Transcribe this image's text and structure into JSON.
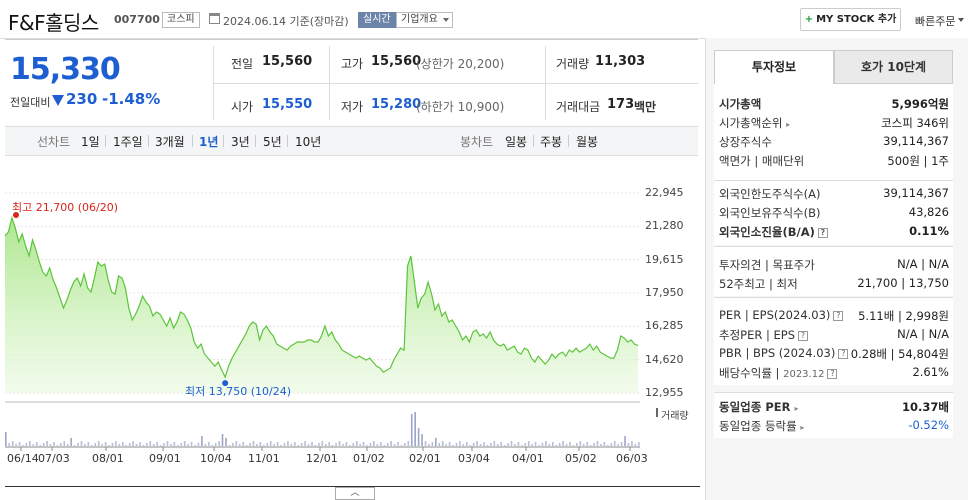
{
  "header": {
    "title": "F&F홀딩스",
    "code": "007700",
    "market_badge": "코스피",
    "date": "2024.06.14 기준(장마감)",
    "live_badge": "실시간",
    "company_info": "기업개요",
    "mystock_label": "MY STOCK 추가",
    "quick_order": "빠른주문"
  },
  "quote": {
    "price": "15,330",
    "change_label": "전일대비",
    "change_value": "230",
    "change_pct": "-1.48%",
    "prev_close_label": "전일",
    "prev_close": "15,560",
    "high_label": "고가",
    "high": "15,560",
    "upper_limit": "(상한가 20,200)",
    "volume_label": "거래량",
    "volume": "11,303",
    "open_label": "시가",
    "open": "15,550",
    "low_label": "저가",
    "low": "15,280",
    "lower_limit": "(하한가 10,900)",
    "amount_label": "거래대금",
    "amount": "173",
    "amount_unit": "백만"
  },
  "periods": {
    "line_label": "선차트",
    "items": [
      "1일",
      "1주일",
      "3개월",
      "1년",
      "3년",
      "5년",
      "10년"
    ],
    "selected": "1년",
    "candle_label": "봉차트",
    "candle_items": [
      "일봉",
      "주봉",
      "월봉"
    ]
  },
  "chart_data": {
    "type": "area",
    "title": "",
    "y_ticks": [
      "22,945",
      "21,280",
      "19,615",
      "17,950",
      "16,285",
      "14,620",
      "12,955"
    ],
    "ylim": [
      12955,
      22945
    ],
    "x_ticks": [
      "06/14",
      "07/03",
      "08/01",
      "09/01",
      "10/04",
      "11/01",
      "12/01",
      "01/02",
      "02/01",
      "03/04",
      "04/01",
      "05/02",
      "06/03"
    ],
    "high_annotation": "최고 21,700 (06/20)",
    "low_annotation": "최저 13,750 (10/24)",
    "volume_label": "거래량",
    "series": [
      {
        "values": [
          20800,
          21000,
          21700,
          21200,
          20500,
          20900,
          20300,
          19800,
          20600,
          20100,
          19500,
          19000,
          18800,
          19200,
          18600,
          18200,
          17700,
          17200,
          17600,
          18100,
          18500,
          18700,
          18300,
          18900,
          18200,
          18000,
          18700,
          19500,
          19300,
          19400,
          18600,
          18000,
          17900,
          18800,
          18700,
          18200,
          17200,
          16600,
          16900,
          17300,
          17800,
          17500,
          17300,
          16800,
          17000,
          16900,
          16600,
          16300,
          16700,
          16200,
          16500,
          17000,
          16900,
          16600,
          16200,
          15500,
          15200,
          15400,
          14900,
          14700,
          14500,
          14300,
          14500,
          14100,
          13750,
          14300,
          14700,
          15000,
          15300,
          15600,
          15900,
          16300,
          16500,
          16400,
          15600,
          16100,
          16300,
          16000,
          15800,
          15400,
          15300,
          15200,
          15100,
          15300,
          15400,
          15500,
          15500,
          15500,
          15600,
          15600,
          15500,
          15500,
          15800,
          16300,
          15800,
          16000,
          15600,
          15400,
          15100,
          15000,
          14900,
          14800,
          14700,
          14800,
          14700,
          14600,
          14700,
          14500,
          14300,
          14200,
          14000,
          14100,
          14200,
          14600,
          14900,
          15200,
          15100,
          19300,
          19800,
          18500,
          17200,
          17700,
          17900,
          18500,
          17900,
          17100,
          17400,
          16800,
          17000,
          16500,
          16600,
          16300,
          16000,
          15600,
          15800,
          15500,
          16000,
          16100,
          15800,
          15900,
          15700,
          16000,
          15600,
          15400,
          15300,
          15400,
          15100,
          15200,
          15300,
          15000,
          14900,
          15200,
          15100,
          14700,
          14500,
          14800,
          14600,
          14400,
          14600,
          14900,
          14700,
          14900,
          15000,
          14800,
          15100,
          15000,
          15200,
          15000,
          15100,
          15200,
          15400,
          15100,
          15300,
          15000,
          14900,
          14800,
          14700,
          14700,
          15100,
          15800,
          15700,
          15500,
          15600,
          15400,
          15330
        ]
      }
    ]
  },
  "right_panel": {
    "tab_active": "투자정보",
    "tab_other": "호가 10단계",
    "market_cap_label": "시가총액",
    "market_cap": "5,996억원",
    "rank_label": "시가총액순위",
    "rank": "코스피 346위",
    "shares_label": "상장주식수",
    "shares": "39,114,367",
    "par_label": "액면가 | 매매단위",
    "par": "500원 | 1주",
    "foreign_limit_label": "외국인한도주식수(A)",
    "foreign_limit": "39,114,367",
    "foreign_hold_label": "외국인보유주식수(B)",
    "foreign_hold": "43,826",
    "foreign_ratio_label": "외국인소진율(B/A)",
    "foreign_ratio": "0.11%",
    "opinion_label": "투자의견 | 목표주가",
    "opinion": "N/A | N/A",
    "w52_label": "52주최고 | 최저",
    "w52": "21,700 | 13,750",
    "per_label": "PER | EPS(2024.03)",
    "per_a": "5.11배",
    "per_b": "2,998원",
    "est_label": "추정PER | EPS",
    "est": "N/A | N/A",
    "pbr_label": "PBR | BPS (2024.03)",
    "pbr_a": "0.28배",
    "pbr_b": "54,804원",
    "div_label": "배당수익률",
    "div_date": "2023.12",
    "div": "2.61%",
    "sector_per_label": "동일업종 PER",
    "sector_per": "10.37배",
    "sector_chg_label": "동일업종 등락률",
    "sector_chg": "-0.52%"
  },
  "colors": {
    "down_blue": "#1d5fd1",
    "area_green": "#7ed957",
    "high_red": "#d9241c"
  }
}
